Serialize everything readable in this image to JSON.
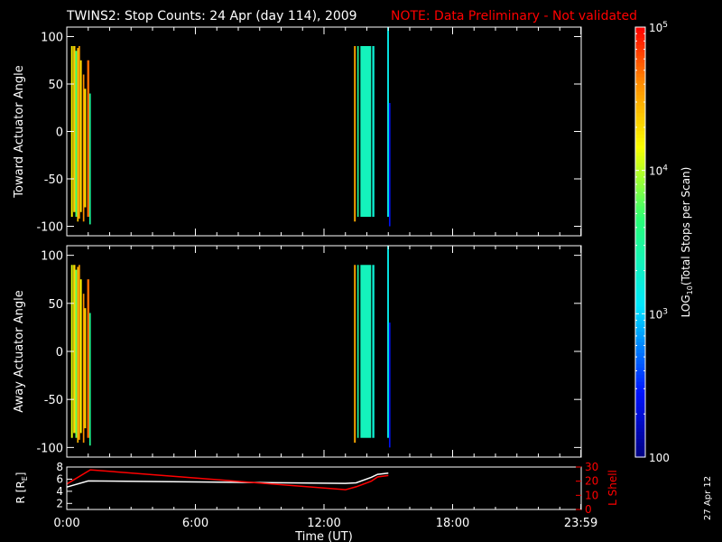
{
  "header": {
    "title": "TWINS2: Stop Counts: 24 Apr (day 114), 2009",
    "note": "NOTE: Data Preliminary - Not validated"
  },
  "stamp": "27 Apr 12",
  "colors": {
    "background": "#000000",
    "axes": "#ffffff",
    "note": "#ff0000",
    "r_line": "#ffffff",
    "lshell_line": "#ff0000"
  },
  "chart_data": [
    {
      "type": "heatmap",
      "id": "toward",
      "ylabel": "Toward Actuator Angle",
      "xlim": [
        0,
        24
      ],
      "ylim": [
        -110,
        110
      ],
      "yticks": [
        100,
        50,
        0,
        -50,
        -100
      ],
      "ytick_labels": [
        "100",
        "50",
        "0",
        "-50",
        "-100"
      ],
      "blocks": [
        {
          "x0": 0.2,
          "x1": 0.28,
          "y0": -90,
          "y1": 90,
          "log": 4.2
        },
        {
          "x0": 0.3,
          "x1": 0.4,
          "y0": -85,
          "y1": 90,
          "log": 4.35
        },
        {
          "x0": 0.4,
          "x1": 0.48,
          "y0": -90,
          "y1": 85,
          "log": 3.7
        },
        {
          "x0": 0.48,
          "x1": 0.55,
          "y0": -95,
          "y1": 88,
          "log": 4.4
        },
        {
          "x0": 0.55,
          "x1": 0.62,
          "y0": -92,
          "y1": 90,
          "log": 4.55
        },
        {
          "x0": 0.62,
          "x1": 0.7,
          "y0": -85,
          "y1": 75,
          "log": 4.3
        },
        {
          "x0": 0.75,
          "x1": 0.82,
          "y0": -95,
          "y1": 60,
          "log": 4.6
        },
        {
          "x0": 0.82,
          "x1": 0.9,
          "y0": -80,
          "y1": 45,
          "log": 4.25
        },
        {
          "x0": 0.95,
          "x1": 1.05,
          "y0": -90,
          "y1": 75,
          "log": 4.7
        },
        {
          "x0": 1.05,
          "x1": 1.12,
          "y0": -98,
          "y1": 40,
          "log": 3.5
        },
        {
          "x0": 13.4,
          "x1": 13.48,
          "y0": -95,
          "y1": 90,
          "log": 4.5
        },
        {
          "x0": 13.55,
          "x1": 13.62,
          "y0": -90,
          "y1": 90,
          "log": 3.5
        },
        {
          "x0": 13.7,
          "x1": 14.2,
          "y0": -90,
          "y1": 90,
          "log": 3.35
        },
        {
          "x0": 14.25,
          "x1": 14.35,
          "y0": -90,
          "y1": 90,
          "log": 3.25
        },
        {
          "x0": 14.95,
          "x1": 15.03,
          "y0": -90,
          "y1": 110,
          "log": 3.15
        },
        {
          "x0": 15.03,
          "x1": 15.1,
          "y0": -100,
          "y1": 30,
          "log": 2.4
        }
      ]
    },
    {
      "type": "heatmap",
      "id": "away",
      "ylabel": "Away Actuator Angle",
      "xlim": [
        0,
        24
      ],
      "ylim": [
        -110,
        110
      ],
      "yticks": [
        100,
        50,
        0,
        -50,
        -100
      ],
      "ytick_labels": [
        "100",
        "50",
        "0",
        "-50",
        "-100"
      ],
      "blocks": [
        {
          "x0": 0.2,
          "x1": 0.28,
          "y0": -90,
          "y1": 90,
          "log": 4.1
        },
        {
          "x0": 0.3,
          "x1": 0.4,
          "y0": -85,
          "y1": 90,
          "log": 4.3
        },
        {
          "x0": 0.4,
          "x1": 0.48,
          "y0": -90,
          "y1": 85,
          "log": 3.8
        },
        {
          "x0": 0.48,
          "x1": 0.55,
          "y0": -95,
          "y1": 88,
          "log": 4.45
        },
        {
          "x0": 0.55,
          "x1": 0.62,
          "y0": -92,
          "y1": 90,
          "log": 4.55
        },
        {
          "x0": 0.62,
          "x1": 0.7,
          "y0": -85,
          "y1": 75,
          "log": 4.2
        },
        {
          "x0": 0.75,
          "x1": 0.82,
          "y0": -95,
          "y1": 60,
          "log": 4.6
        },
        {
          "x0": 0.82,
          "x1": 0.9,
          "y0": -80,
          "y1": 45,
          "log": 4.3
        },
        {
          "x0": 0.95,
          "x1": 1.05,
          "y0": -90,
          "y1": 75,
          "log": 4.7
        },
        {
          "x0": 1.05,
          "x1": 1.12,
          "y0": -98,
          "y1": 40,
          "log": 3.55
        },
        {
          "x0": 13.4,
          "x1": 13.48,
          "y0": -95,
          "y1": 90,
          "log": 4.5
        },
        {
          "x0": 13.55,
          "x1": 13.62,
          "y0": -90,
          "y1": 90,
          "log": 3.45
        },
        {
          "x0": 13.7,
          "x1": 14.2,
          "y0": -90,
          "y1": 90,
          "log": 3.35
        },
        {
          "x0": 14.25,
          "x1": 14.35,
          "y0": -90,
          "y1": 90,
          "log": 3.25
        },
        {
          "x0": 14.95,
          "x1": 15.03,
          "y0": -90,
          "y1": 110,
          "log": 3.15
        },
        {
          "x0": 15.03,
          "x1": 15.1,
          "y0": -100,
          "y1": 30,
          "log": 2.4
        }
      ]
    },
    {
      "type": "line",
      "id": "ephemeris",
      "xlabel": "Time (UT)",
      "xlim": [
        0,
        24
      ],
      "xticks": [
        0,
        6,
        12,
        18,
        23.983
      ],
      "xtick_labels": [
        "0:00",
        "6:00",
        "12:00",
        "18:00",
        "23:59"
      ],
      "ylabel_left": "R [R",
      "ylabel_left_sub": "E",
      "ylabel_left_end": "]",
      "ylim_left": [
        1,
        8
      ],
      "yticks_left": [
        2,
        4,
        6,
        8
      ],
      "ytick_labels_left": [
        "2",
        "4",
        "6",
        "8"
      ],
      "ylabel_right": "L Shell",
      "ylim_right": [
        0,
        30
      ],
      "yticks_right": [
        0,
        10,
        20,
        30
      ],
      "ytick_labels_right": [
        "0",
        "10",
        "20",
        "30"
      ],
      "series": [
        {
          "axis": "left",
          "color": "#ffffff",
          "x": [
            0.0,
            1.0,
            13.0,
            13.5,
            14.2,
            14.5,
            15.0
          ],
          "y": [
            4.7,
            5.7,
            5.3,
            5.4,
            6.3,
            6.8,
            7.0
          ]
        },
        {
          "axis": "right",
          "color": "#ff0000",
          "x": [
            0.0,
            1.1,
            13.0,
            13.5,
            14.2,
            14.5,
            15.0
          ],
          "y": [
            18,
            28,
            14,
            16,
            20,
            23,
            24
          ]
        }
      ]
    }
  ],
  "colorbar": {
    "label": "LOG",
    "label_sub": "10",
    "label_rest": "(Total Stops per Scan)",
    "range_log": [
      2,
      5
    ],
    "ticks_log": [
      5,
      4,
      3,
      2
    ],
    "tick_bases": [
      "10",
      "10",
      "10",
      "100"
    ],
    "tick_exps": [
      "5",
      "4",
      "3",
      ""
    ]
  }
}
